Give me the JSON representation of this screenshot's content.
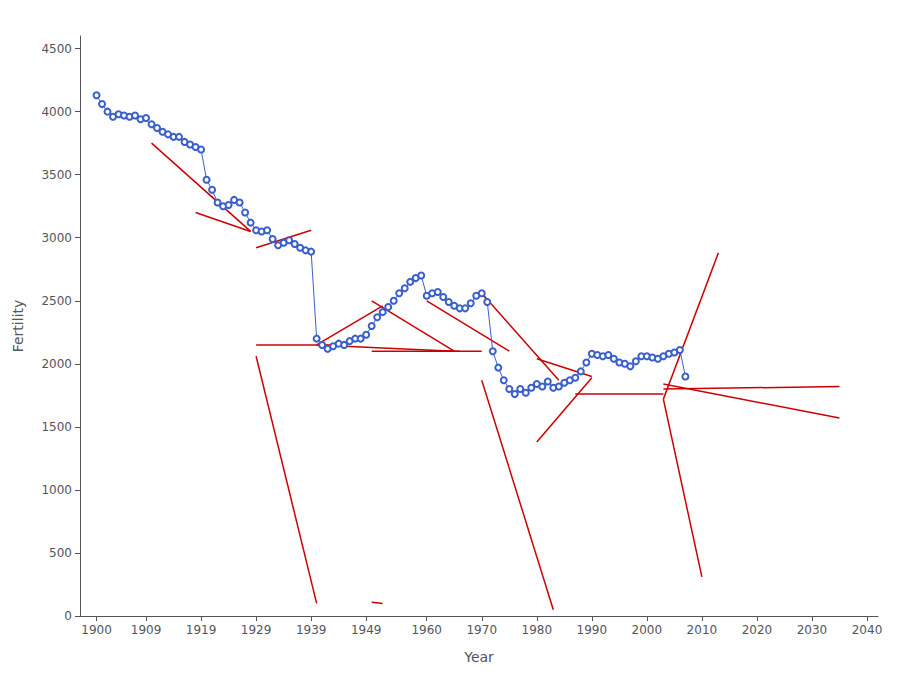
{
  "chart_data": {
    "type": "line",
    "xlabel": "Year",
    "ylabel": "Fertility",
    "xlim": [
      1897,
      2042
    ],
    "ylim": [
      0,
      4600
    ],
    "xticks": [
      1900,
      1909,
      1919,
      1929,
      1939,
      1949,
      1960,
      1970,
      1980,
      1990,
      2000,
      2010,
      2020,
      2030,
      2040
    ],
    "yticks": [
      0,
      500,
      1000,
      1500,
      2000,
      2500,
      3000,
      3500,
      4000,
      4500
    ],
    "grid": false,
    "series": [
      {
        "color": "#3a5fcd",
        "marker": "o",
        "x": [
          1900,
          1901,
          1902,
          1903,
          1904,
          1905,
          1906,
          1907,
          1908,
          1909,
          1910,
          1911,
          1912,
          1913,
          1914,
          1915,
          1916,
          1917,
          1918,
          1919,
          1920,
          1921,
          1922,
          1923,
          1924,
          1925,
          1926,
          1927,
          1928,
          1929,
          1930,
          1931,
          1932,
          1933,
          1934,
          1935,
          1936,
          1937,
          1938,
          1939,
          1940,
          1941,
          1942,
          1943,
          1944,
          1945,
          1946,
          1947,
          1948,
          1949,
          1950,
          1951,
          1952,
          1953,
          1954,
          1955,
          1956,
          1957,
          1958,
          1959,
          1960,
          1961,
          1962,
          1963,
          1964,
          1965,
          1966,
          1967,
          1968,
          1969,
          1970,
          1971,
          1972,
          1973,
          1974,
          1975,
          1976,
          1977,
          1978,
          1979,
          1980,
          1981,
          1982,
          1983,
          1984,
          1985,
          1986,
          1987,
          1988,
          1989,
          1990,
          1991,
          1992,
          1993,
          1994,
          1995,
          1996,
          1997,
          1998,
          1999,
          2000,
          2001,
          2002,
          2003,
          2004,
          2005,
          2006,
          2007
        ],
        "values": [
          4130,
          4060,
          4000,
          3960,
          3980,
          3970,
          3960,
          3970,
          3940,
          3950,
          3900,
          3870,
          3840,
          3820,
          3800,
          3800,
          3760,
          3740,
          3720,
          3700,
          3460,
          3380,
          3280,
          3250,
          3260,
          3300,
          3280,
          3200,
          3120,
          3060,
          3050,
          3060,
          2990,
          2940,
          2960,
          2980,
          2950,
          2920,
          2900,
          2890,
          2200,
          2150,
          2120,
          2140,
          2160,
          2150,
          2180,
          2200,
          2200,
          2230,
          2300,
          2370,
          2410,
          2450,
          2500,
          2560,
          2600,
          2650,
          2680,
          2700,
          2540,
          2560,
          2570,
          2530,
          2490,
          2460,
          2440,
          2440,
          2480,
          2540,
          2560,
          2490,
          2100,
          1970,
          1870,
          1800,
          1760,
          1800,
          1770,
          1810,
          1840,
          1820,
          1860,
          1810,
          1820,
          1850,
          1870,
          1890,
          1940,
          2010,
          2080,
          2070,
          2060,
          2070,
          2040,
          2010,
          2000,
          1980,
          2020,
          2060,
          2060,
          2050,
          2040,
          2060,
          2080,
          2090,
          2110,
          1900
        ]
      },
      {
        "color": "#cc0000",
        "marker": "none",
        "x": [
          1910,
          1928
        ],
        "values": [
          3750,
          3050
        ]
      },
      {
        "color": "#cc0000",
        "marker": "none",
        "x": [
          1918,
          1928
        ],
        "values": [
          3200,
          3050
        ]
      },
      {
        "color": "#cc0000",
        "marker": "none",
        "x": [
          1929,
          1939
        ],
        "values": [
          2920,
          3060
        ]
      },
      {
        "color": "#cc0000",
        "marker": "none",
        "x": [
          1929,
          1940
        ],
        "values": [
          2060,
          100
        ]
      },
      {
        "color": "#cc0000",
        "marker": "none",
        "x": [
          1929,
          1943
        ],
        "values": [
          2150,
          2150
        ]
      },
      {
        "color": "#cc0000",
        "marker": "none",
        "x": [
          1940,
          1965
        ],
        "values": [
          2150,
          2100
        ]
      },
      {
        "color": "#cc0000",
        "marker": "none",
        "x": [
          1940,
          1952
        ],
        "values": [
          2150,
          2460
        ]
      },
      {
        "color": "#cc0000",
        "marker": "none",
        "x": [
          1950,
          1952
        ],
        "values": [
          110,
          100
        ]
      },
      {
        "color": "#cc0000",
        "marker": "none",
        "x": [
          1950,
          1965
        ],
        "values": [
          2500,
          2100
        ]
      },
      {
        "color": "#cc0000",
        "marker": "none",
        "x": [
          1950,
          1966
        ],
        "values": [
          2100,
          2100
        ]
      },
      {
        "color": "#cc0000",
        "marker": "none",
        "x": [
          1960,
          1975
        ],
        "values": [
          2500,
          2100
        ]
      },
      {
        "color": "#cc0000",
        "marker": "none",
        "x": [
          1960,
          1970
        ],
        "values": [
          2100,
          2100
        ]
      },
      {
        "color": "#cc0000",
        "marker": "none",
        "x": [
          1970,
          1983
        ],
        "values": [
          1870,
          50
        ]
      },
      {
        "color": "#cc0000",
        "marker": "none",
        "x": [
          1970,
          1984
        ],
        "values": [
          2560,
          1870
        ]
      },
      {
        "color": "#cc0000",
        "marker": "none",
        "x": [
          1980,
          1990
        ],
        "values": [
          1380,
          1890
        ]
      },
      {
        "color": "#cc0000",
        "marker": "none",
        "x": [
          1980,
          1990
        ],
        "values": [
          2040,
          1900
        ]
      },
      {
        "color": "#cc0000",
        "marker": "none",
        "x": [
          1987,
          2003
        ],
        "values": [
          1760,
          1760
        ]
      },
      {
        "color": "#cc0000",
        "marker": "none",
        "x": [
          2003,
          2035
        ],
        "values": [
          1800,
          1820
        ]
      },
      {
        "color": "#cc0000",
        "marker": "none",
        "x": [
          2003,
          2035
        ],
        "values": [
          1840,
          1570
        ]
      },
      {
        "color": "#cc0000",
        "marker": "none",
        "x": [
          2003,
          2013
        ],
        "values": [
          1720,
          2880
        ]
      },
      {
        "color": "#cc0000",
        "marker": "none",
        "x": [
          2003,
          2010
        ],
        "values": [
          1720,
          310
        ]
      }
    ]
  }
}
